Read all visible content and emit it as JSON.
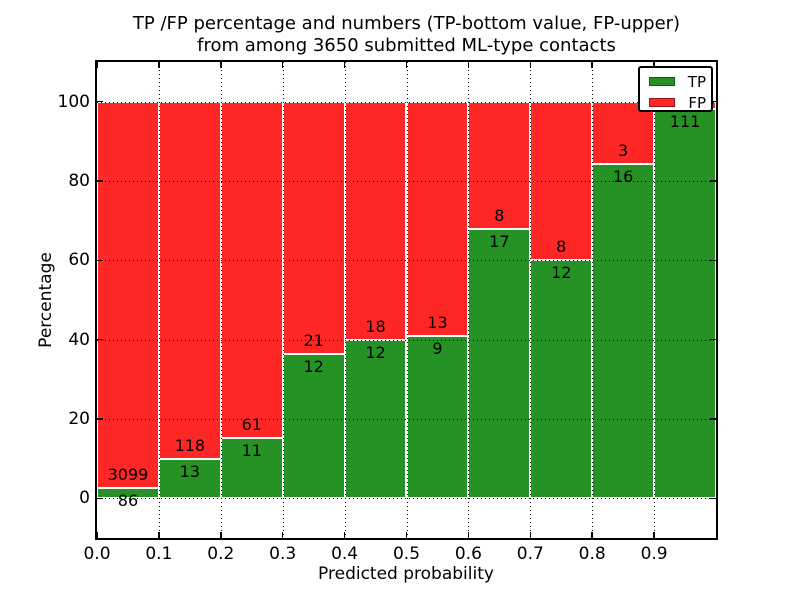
{
  "chart_data": {
    "type": "bar",
    "stacked": true,
    "orientation": "vertical",
    "title_line1": "TP /FP percentage and numbers (TP-bottom value, FP-upper)",
    "title_line2": "from among 3650 submitted ML-type contacts",
    "total_submitted": 3650,
    "xlabel": "Predicted probability",
    "ylabel": "Percentage",
    "xlim": [
      0.0,
      1.0
    ],
    "ylim": [
      -10,
      110
    ],
    "grid": {
      "visible": true,
      "linestyle": "dotted",
      "color": "#000000",
      "above_bars": true
    },
    "yticks": [
      {
        "v": 0,
        "label": "0"
      },
      {
        "v": 20,
        "label": "20"
      },
      {
        "v": 40,
        "label": "40"
      },
      {
        "v": 60,
        "label": "60"
      },
      {
        "v": 80,
        "label": "80"
      },
      {
        "v": 100,
        "label": "100"
      }
    ],
    "xticks": [
      {
        "v": 0.0,
        "label": "0.0"
      },
      {
        "v": 0.1,
        "label": "0.1"
      },
      {
        "v": 0.2,
        "label": "0.2"
      },
      {
        "v": 0.3,
        "label": "0.3"
      },
      {
        "v": 0.4,
        "label": "0.4"
      },
      {
        "v": 0.5,
        "label": "0.5"
      },
      {
        "v": 0.6,
        "label": "0.6"
      },
      {
        "v": 0.7,
        "label": "0.7"
      },
      {
        "v": 0.8,
        "label": "0.8"
      },
      {
        "v": 0.9,
        "label": "0.9"
      }
    ],
    "legend": {
      "position": "upper right",
      "items": [
        {
          "label": "TP",
          "color": "#269226"
        },
        {
          "label": "FP",
          "color": "#ff2626"
        }
      ]
    },
    "colors": {
      "tp": "#269226",
      "fp": "#ff2626",
      "text": "#000000",
      "spine": "#000000"
    },
    "bins": [
      {
        "x0": 0.0,
        "x1": 0.1,
        "tp": 86,
        "fp": 3099,
        "tp_label": "86",
        "fp_label": "3099",
        "tp_pct": 2.7
      },
      {
        "x0": 0.1,
        "x1": 0.2,
        "tp": 13,
        "fp": 118,
        "tp_label": "13",
        "fp_label": "118",
        "tp_pct": 9.92
      },
      {
        "x0": 0.2,
        "x1": 0.3,
        "tp": 11,
        "fp": 61,
        "tp_label": "11",
        "fp_label": "61",
        "tp_pct": 15.28
      },
      {
        "x0": 0.3,
        "x1": 0.4,
        "tp": 12,
        "fp": 21,
        "tp_label": "12",
        "fp_label": "21",
        "tp_pct": 36.36
      },
      {
        "x0": 0.4,
        "x1": 0.5,
        "tp": 12,
        "fp": 18,
        "tp_label": "12",
        "fp_label": "18",
        "tp_pct": 40.0
      },
      {
        "x0": 0.5,
        "x1": 0.6,
        "tp": 9,
        "fp": 13,
        "tp_label": "9",
        "fp_label": "13",
        "tp_pct": 40.91
      },
      {
        "x0": 0.6,
        "x1": 0.7,
        "tp": 17,
        "fp": 8,
        "tp_label": "17",
        "fp_label": "8",
        "tp_pct": 68.0
      },
      {
        "x0": 0.7,
        "x1": 0.8,
        "tp": 12,
        "fp": 8,
        "tp_label": "12",
        "fp_label": "8",
        "tp_pct": 60.0
      },
      {
        "x0": 0.8,
        "x1": 0.9,
        "tp": 16,
        "fp": 3,
        "tp_label": "16",
        "fp_label": "3",
        "tp_pct": 84.21
      },
      {
        "x0": 0.9,
        "x1": 1.0,
        "tp": 111,
        "fp": null,
        "tp_label": "111",
        "fp_label": null,
        "tp_pct": 98.2
      }
    ]
  }
}
